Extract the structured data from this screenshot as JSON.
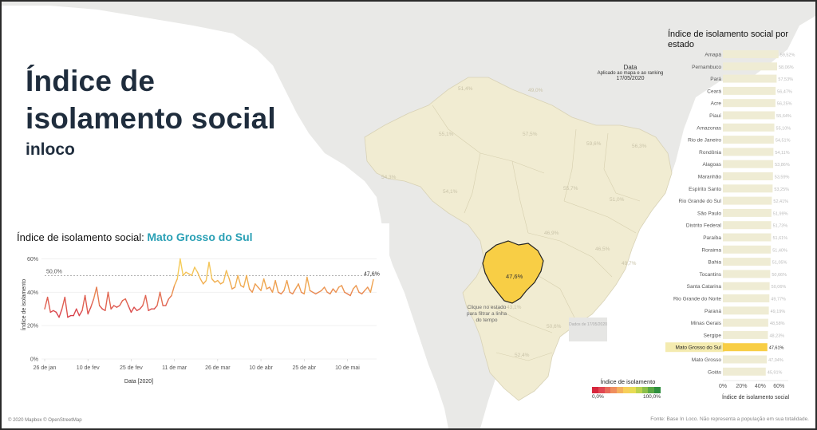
{
  "header": {
    "title": "Índice de isolamento social",
    "subtitle": "inloco"
  },
  "line_section": {
    "title_prefix": "Índice de isolamento social: ",
    "state": "Mato Grosso do Sul",
    "ref_label": "50,0%",
    "last_label": "47,6%"
  },
  "date_filter": {
    "heading": "Data",
    "applied": "Aplicado ao mapa e ao ranking",
    "value": "17/05/2020"
  },
  "map": {
    "selected_label": "47,6%",
    "hint": "Clique no estado para filtrar a linha do tempo",
    "overlay_text": "Dados de 17/05/2020",
    "legend_title": "Índice de isolamento",
    "legend_min": "0,0%",
    "legend_max": "100,0%",
    "legend_colors": [
      "#d7263d",
      "#e04652",
      "#e86a5a",
      "#ef8e5e",
      "#f4b05e",
      "#f7cf5a",
      "#e8dc55",
      "#bcd24e",
      "#8cc04a",
      "#5aa845",
      "#2f8f3e"
    ],
    "state_labels": [
      "51,4%",
      "49,0%",
      "55,1%",
      "57,5%",
      "59,6%",
      "56,3%",
      "54,3%",
      "54,1%",
      "47,6%",
      "55,7%",
      "51,0%",
      "46,9%",
      "46,5%",
      "49,7%",
      "50,6%",
      "43,1%",
      "52,4%"
    ]
  },
  "ranking": {
    "title": "Índice de isolamento social por estado",
    "axis_title": "Índice de isolamento social",
    "ticks": [
      "0%",
      "20%",
      "40%",
      "60%"
    ],
    "selected": "Mato Grosso do Sul",
    "rows": [
      {
        "state": "Amapá",
        "label": "59,52%",
        "value": 59.52
      },
      {
        "state": "Pernambuco",
        "label": "58,06%",
        "value": 58.06
      },
      {
        "state": "Pará",
        "label": "57,53%",
        "value": 57.53
      },
      {
        "state": "Ceará",
        "label": "56,47%",
        "value": 56.47
      },
      {
        "state": "Acre",
        "label": "56,25%",
        "value": 56.25
      },
      {
        "state": "Piauí",
        "label": "55,64%",
        "value": 55.64
      },
      {
        "state": "Amazonas",
        "label": "55,10%",
        "value": 55.1
      },
      {
        "state": "Rio de Janeiro",
        "label": "54,51%",
        "value": 54.51
      },
      {
        "state": "Rondônia",
        "label": "54,11%",
        "value": 54.11
      },
      {
        "state": "Alagoas",
        "label": "53,86%",
        "value": 53.86
      },
      {
        "state": "Maranhão",
        "label": "53,59%",
        "value": 53.59
      },
      {
        "state": "Espírito Santo",
        "label": "53,25%",
        "value": 53.25
      },
      {
        "state": "Rio Grande do Sul",
        "label": "52,41%",
        "value": 52.41
      },
      {
        "state": "São Paulo",
        "label": "51,99%",
        "value": 51.99
      },
      {
        "state": "Distrito Federal",
        "label": "51,73%",
        "value": 51.73
      },
      {
        "state": "Paraíba",
        "label": "51,61%",
        "value": 51.61
      },
      {
        "state": "Roraima",
        "label": "51,40%",
        "value": 51.4
      },
      {
        "state": "Bahia",
        "label": "51,05%",
        "value": 51.05
      },
      {
        "state": "Tocantins",
        "label": "50,66%",
        "value": 50.66
      },
      {
        "state": "Santa Catarina",
        "label": "50,06%",
        "value": 50.06
      },
      {
        "state": "Rio Grande do Norte",
        "label": "49,77%",
        "value": 49.77
      },
      {
        "state": "Paraná",
        "label": "49,19%",
        "value": 49.19
      },
      {
        "state": "Minas Gerais",
        "label": "48,58%",
        "value": 48.58
      },
      {
        "state": "Sergipe",
        "label": "48,23%",
        "value": 48.23
      },
      {
        "state": "Mato Grosso do Sul",
        "label": "47,61%",
        "value": 47.61
      },
      {
        "state": "Mato Grosso",
        "label": "47,04%",
        "value": 47.04
      },
      {
        "state": "Goiás",
        "label": "45,91%",
        "value": 45.91
      }
    ]
  },
  "footer": {
    "left": "© 2020 Mapbox © OpenStreetMap",
    "right": "Fonte: Base In Loco. Não representa a população em sua totalidade."
  },
  "chart_data": [
    {
      "type": "line",
      "xlabel": "Data [2020]",
      "ylabel": "Índice de isolamento",
      "x_ticks": [
        "26 de jan",
        "10 de fev",
        "25 de fev",
        "11 de mar",
        "26 de mar",
        "10 de abr",
        "25 de abr",
        "10 de mai"
      ],
      "y_ticks": [
        "0%",
        "20%",
        "40%",
        "60%"
      ],
      "ylim": [
        0,
        65
      ],
      "reference_line": 50.0,
      "x_start": "2020-01-26",
      "x_end": "2020-05-17",
      "series": [
        {
          "values": [
            30,
            37,
            28,
            29,
            28,
            25,
            30,
            37,
            25,
            26,
            26,
            30,
            26,
            29,
            38,
            27,
            31,
            36,
            43,
            32,
            30,
            29,
            40,
            30,
            32,
            31,
            32,
            35,
            36,
            32,
            28,
            31,
            29,
            30,
            32,
            38,
            29,
            30,
            30,
            32,
            40,
            32,
            32,
            36,
            38,
            44,
            48,
            60,
            50,
            52,
            51,
            50,
            55,
            52,
            48,
            45,
            47,
            58,
            48,
            46,
            47,
            45,
            46,
            53,
            48,
            42,
            43,
            50,
            44,
            43,
            50,
            42,
            40,
            45,
            43,
            41,
            48,
            42,
            43,
            40,
            47,
            40,
            39,
            41,
            47,
            40,
            39,
            42,
            45,
            40,
            39,
            49,
            41,
            40,
            39,
            40,
            41,
            43,
            40,
            39,
            42,
            40,
            43,
            44,
            40,
            39,
            38,
            42,
            44,
            40,
            39,
            41,
            43,
            40,
            47.6
          ]
        }
      ]
    },
    {
      "type": "bar",
      "title": "Índice de isolamento social por estado",
      "xlabel": "Índice de isolamento social",
      "xlim": [
        0,
        70
      ],
      "categories": [
        "Amapá",
        "Pernambuco",
        "Pará",
        "Ceará",
        "Acre",
        "Piauí",
        "Amazonas",
        "Rio de Janeiro",
        "Rondônia",
        "Alagoas",
        "Maranhão",
        "Espírito Santo",
        "Rio Grande do Sul",
        "São Paulo",
        "Distrito Federal",
        "Paraíba",
        "Roraima",
        "Bahia",
        "Tocantins",
        "Santa Catarina",
        "Rio Grande do Norte",
        "Paraná",
        "Minas Gerais",
        "Sergipe",
        "Mato Grosso do Sul",
        "Mato Grosso",
        "Goiás"
      ],
      "values": [
        59.52,
        58.06,
        57.53,
        56.47,
        56.25,
        55.64,
        55.1,
        54.51,
        54.11,
        53.86,
        53.59,
        53.25,
        52.41,
        51.99,
        51.73,
        51.61,
        51.4,
        51.05,
        50.66,
        50.06,
        49.77,
        49.19,
        48.58,
        48.23,
        47.61,
        47.04,
        45.91
      ]
    }
  ]
}
